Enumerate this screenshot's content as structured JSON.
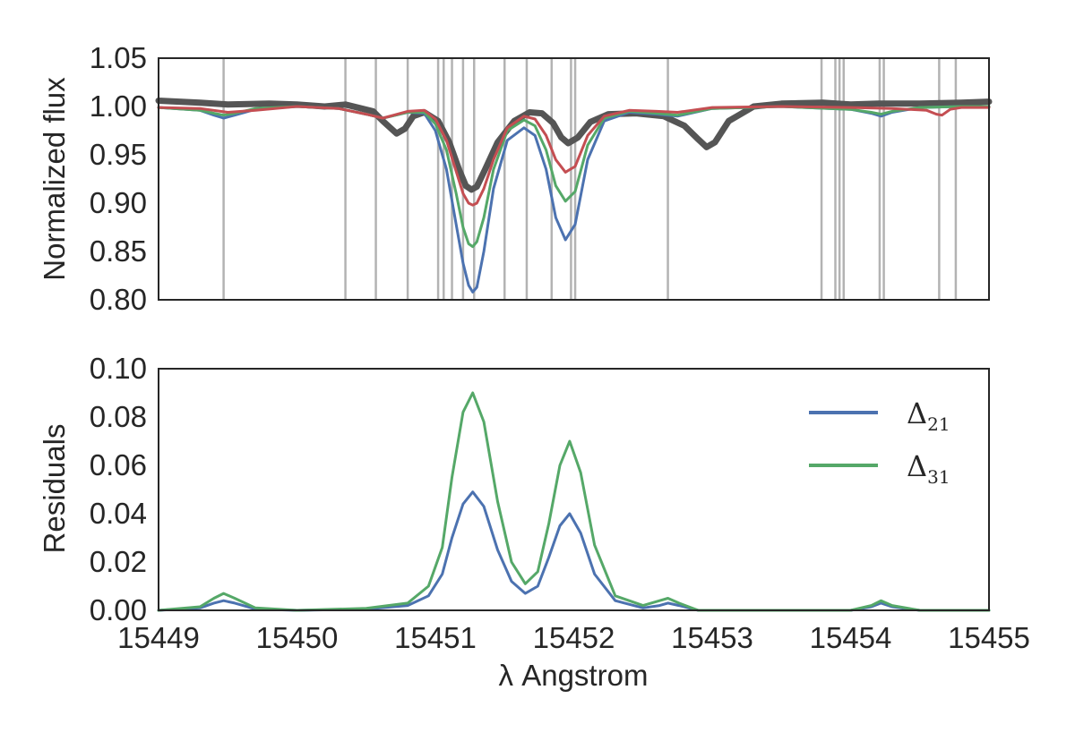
{
  "chart_data": [
    {
      "type": "line",
      "ylabel": "Normalized flux",
      "xlabel": "",
      "xlim": [
        15449,
        15455
      ],
      "ylim": [
        0.8,
        1.05
      ],
      "yticks": [
        "1.05",
        "1.00",
        "0.95",
        "0.90",
        "0.85",
        "0.80"
      ],
      "grid": false,
      "line_list_wavelengths": [
        15449.47,
        15450.35,
        15450.57,
        15450.8,
        15451.02,
        15451.06,
        15451.12,
        15451.2,
        15451.28,
        15451.5,
        15451.66,
        15451.84,
        15451.98,
        15452.01,
        15452.68,
        15453.79,
        15453.89,
        15453.92,
        15453.95,
        15454.21,
        15454.24,
        15454.64,
        15454.76
      ],
      "series": [
        {
          "color": "#555555",
          "x": [
            15449.0,
            15449.3,
            15449.5,
            15449.8,
            15450.0,
            15450.2,
            15450.35,
            15450.55,
            15450.62,
            15450.72,
            15450.78,
            15450.84,
            15450.92,
            15451.02,
            15451.1,
            15451.17,
            15451.22,
            15451.26,
            15451.3,
            15451.36,
            15451.45,
            15451.57,
            15451.68,
            15451.77,
            15451.85,
            15451.91,
            15451.96,
            15452.03,
            15452.12,
            15452.25,
            15452.45,
            15452.65,
            15452.8,
            15452.9,
            15452.96,
            15453.02,
            15453.12,
            15453.3,
            15453.5,
            15453.8,
            15454.0,
            15454.2,
            15454.5,
            15454.8,
            15455.0
          ],
          "y": [
            1.006,
            1.004,
            1.002,
            1.003,
            1.002,
            1.0,
            1.002,
            0.995,
            0.985,
            0.972,
            0.977,
            0.99,
            0.994,
            0.985,
            0.963,
            0.935,
            0.918,
            0.914,
            0.917,
            0.935,
            0.963,
            0.985,
            0.994,
            0.993,
            0.983,
            0.968,
            0.962,
            0.968,
            0.984,
            0.992,
            0.993,
            0.99,
            0.98,
            0.966,
            0.958,
            0.963,
            0.985,
            1.0,
            1.003,
            1.004,
            1.002,
            1.003,
            1.003,
            1.004,
            1.005
          ]
        },
        {
          "color": "#4c72b0",
          "x": [
            15449.0,
            15449.3,
            15449.4,
            15449.47,
            15449.55,
            15449.7,
            15450.0,
            15450.3,
            15450.5,
            15450.62,
            15450.8,
            15450.92,
            15451.0,
            15451.08,
            15451.15,
            15451.2,
            15451.24,
            15451.27,
            15451.3,
            15451.35,
            15451.42,
            15451.52,
            15451.64,
            15451.72,
            15451.8,
            15451.87,
            15451.94,
            15452.01,
            15452.1,
            15452.22,
            15452.4,
            15452.6,
            15452.75,
            15453.0,
            15453.5,
            15454.0,
            15454.15,
            15454.22,
            15454.3,
            15454.5,
            15454.8,
            15455.0
          ],
          "y": [
            0.999,
            0.996,
            0.991,
            0.988,
            0.991,
            0.997,
            1.0,
            0.998,
            0.992,
            0.988,
            0.994,
            0.993,
            0.975,
            0.935,
            0.878,
            0.838,
            0.815,
            0.808,
            0.813,
            0.85,
            0.915,
            0.965,
            0.978,
            0.97,
            0.935,
            0.885,
            0.862,
            0.878,
            0.945,
            0.985,
            0.994,
            0.992,
            0.99,
            0.998,
            1.0,
            0.997,
            0.993,
            0.99,
            0.994,
            0.999,
            1.0,
            1.0
          ]
        },
        {
          "color": "#55a868",
          "x": [
            15449.0,
            15449.3,
            15449.4,
            15449.47,
            15449.55,
            15449.7,
            15450.0,
            15450.3,
            15450.5,
            15450.62,
            15450.8,
            15450.92,
            15451.0,
            15451.08,
            15451.15,
            15451.2,
            15451.24,
            15451.27,
            15451.3,
            15451.35,
            15451.42,
            15451.52,
            15451.64,
            15451.72,
            15451.8,
            15451.87,
            15451.94,
            15452.01,
            15452.1,
            15452.22,
            15452.4,
            15452.6,
            15452.75,
            15453.0,
            15453.5,
            15454.0,
            15454.15,
            15454.22,
            15454.3,
            15454.5,
            15454.8,
            15455.0
          ],
          "y": [
            0.999,
            0.996,
            0.993,
            0.991,
            0.993,
            0.998,
            1.0,
            0.998,
            0.992,
            0.988,
            0.994,
            0.994,
            0.982,
            0.955,
            0.91,
            0.875,
            0.858,
            0.855,
            0.86,
            0.885,
            0.935,
            0.975,
            0.986,
            0.98,
            0.955,
            0.918,
            0.902,
            0.912,
            0.96,
            0.988,
            0.995,
            0.993,
            0.991,
            0.998,
            1.0,
            0.997,
            0.994,
            0.992,
            0.995,
            0.999,
            1.0,
            1.0
          ]
        },
        {
          "color": "#c44e52",
          "x": [
            15449.0,
            15449.3,
            15449.5,
            15449.7,
            15450.0,
            15450.3,
            15450.5,
            15450.62,
            15450.8,
            15450.92,
            15451.0,
            15451.08,
            15451.15,
            15451.2,
            15451.24,
            15451.27,
            15451.3,
            15451.35,
            15451.42,
            15451.52,
            15451.64,
            15451.72,
            15451.8,
            15451.87,
            15451.94,
            15452.01,
            15452.1,
            15452.22,
            15452.4,
            15452.6,
            15452.75,
            15453.0,
            15453.5,
            15454.0,
            15454.3,
            15454.55,
            15454.62,
            15454.66,
            15454.72,
            15454.8,
            15455.0
          ],
          "y": [
            0.999,
            0.998,
            0.994,
            0.996,
            1.0,
            0.998,
            0.992,
            0.988,
            0.995,
            0.996,
            0.987,
            0.965,
            0.933,
            0.91,
            0.9,
            0.898,
            0.9,
            0.915,
            0.945,
            0.978,
            0.99,
            0.987,
            0.97,
            0.945,
            0.932,
            0.938,
            0.97,
            0.99,
            0.996,
            0.995,
            0.994,
            0.999,
            1.0,
            0.999,
            0.998,
            0.996,
            0.992,
            0.991,
            0.997,
            0.999,
            0.999
          ]
        }
      ]
    },
    {
      "type": "line",
      "ylabel": "Residuals",
      "xlabel": "λ Angstrom",
      "xlim": [
        15449,
        15455
      ],
      "ylim": [
        0.0,
        0.1
      ],
      "yticks": [
        "0.10",
        "0.08",
        "0.06",
        "0.04",
        "0.02",
        "0.00"
      ],
      "xticks": [
        "15449",
        "15450",
        "15451",
        "15452",
        "15453",
        "15454",
        "15455"
      ],
      "grid": false,
      "legend_position": "upper-right",
      "series": [
        {
          "name": "Δ",
          "name_subscript": "21",
          "color": "#4c72b0",
          "x": [
            15449.0,
            15449.3,
            15449.4,
            15449.47,
            15449.55,
            15449.7,
            15450.0,
            15450.5,
            15450.8,
            15450.95,
            15451.05,
            15451.12,
            15451.2,
            15451.27,
            15451.35,
            15451.45,
            15451.55,
            15451.65,
            15451.74,
            15451.82,
            15451.9,
            15451.97,
            15452.05,
            15452.15,
            15452.3,
            15452.5,
            15452.62,
            15452.68,
            15452.76,
            15452.9,
            15453.5,
            15454.0,
            15454.15,
            15454.22,
            15454.3,
            15454.5,
            15455.0
          ],
          "y": [
            0.0,
            0.001,
            0.003,
            0.004,
            0.003,
            0.0005,
            0.0,
            0.0005,
            0.002,
            0.006,
            0.015,
            0.03,
            0.044,
            0.049,
            0.043,
            0.025,
            0.012,
            0.007,
            0.01,
            0.022,
            0.035,
            0.04,
            0.032,
            0.015,
            0.004,
            0.001,
            0.002,
            0.003,
            0.002,
            0.0,
            0.0,
            0.0,
            0.0015,
            0.003,
            0.0015,
            0.0,
            0.0
          ]
        },
        {
          "name": "Δ",
          "name_subscript": "31",
          "color": "#55a868",
          "x": [
            15449.0,
            15449.3,
            15449.4,
            15449.47,
            15449.55,
            15449.7,
            15450.0,
            15450.5,
            15450.8,
            15450.95,
            15451.05,
            15451.12,
            15451.2,
            15451.27,
            15451.35,
            15451.45,
            15451.55,
            15451.65,
            15451.74,
            15451.82,
            15451.9,
            15451.97,
            15452.05,
            15452.15,
            15452.3,
            15452.5,
            15452.62,
            15452.68,
            15452.76,
            15452.9,
            15453.5,
            15454.0,
            15454.15,
            15454.22,
            15454.3,
            15454.5,
            15455.0
          ],
          "y": [
            0.0,
            0.0015,
            0.005,
            0.007,
            0.005,
            0.001,
            0.0,
            0.0008,
            0.003,
            0.01,
            0.026,
            0.055,
            0.082,
            0.09,
            0.078,
            0.045,
            0.02,
            0.011,
            0.016,
            0.036,
            0.06,
            0.07,
            0.057,
            0.027,
            0.006,
            0.002,
            0.004,
            0.005,
            0.003,
            0.0,
            0.0,
            0.0,
            0.002,
            0.004,
            0.002,
            0.0,
            0.0
          ]
        }
      ]
    }
  ]
}
